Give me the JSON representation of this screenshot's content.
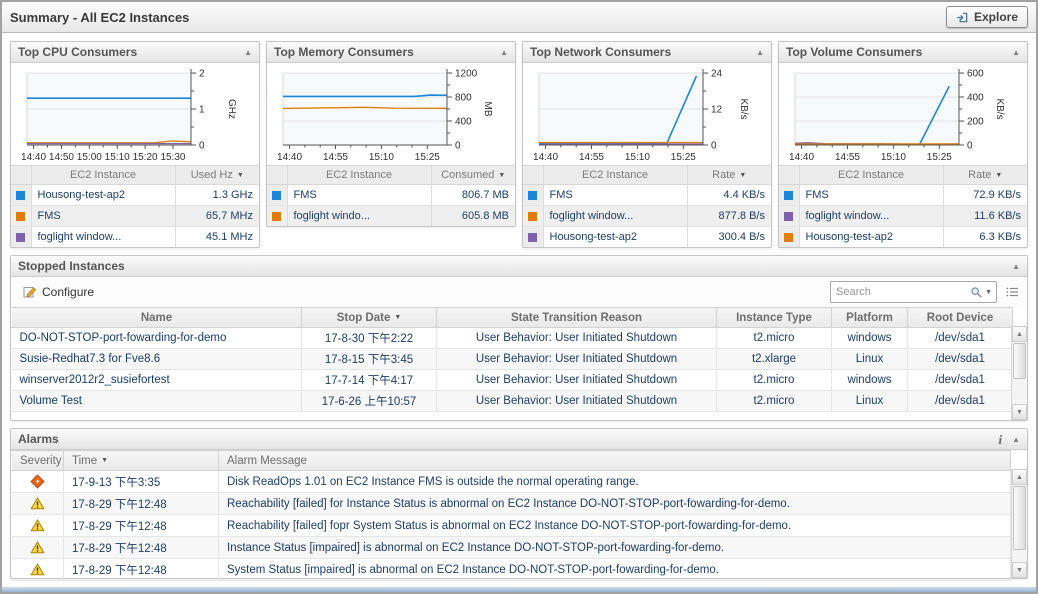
{
  "header": {
    "title": "Summary - All EC2 Instances",
    "explore_label": "Explore"
  },
  "panels": [
    {
      "title": "Top CPU Consumers",
      "name_header": "EC2 Instance",
      "value_header": "Used Hz",
      "rows": [
        {
          "color": "#1c87d9",
          "name": "Housong-test-ap2",
          "value": "1.3 GHz"
        },
        {
          "color": "#e07d0a",
          "name": "FMS",
          "value": "65.7 MHz"
        },
        {
          "color": "#7e62ab",
          "name": "foglight window...",
          "value": "45.1 MHz"
        }
      ]
    },
    {
      "title": "Top Memory Consumers",
      "name_header": "EC2 Instance",
      "value_header": "Consumed",
      "rows": [
        {
          "color": "#1c87d9",
          "name": "FMS",
          "value": "806.7 MB"
        },
        {
          "color": "#e07d0a",
          "name": "foglight windo...",
          "value": "605.8 MB"
        }
      ]
    },
    {
      "title": "Top Network Consumers",
      "name_header": "EC2 Instance",
      "value_header": "Rate",
      "rows": [
        {
          "color": "#1c87d9",
          "name": "FMS",
          "value": "4.4 KB/s"
        },
        {
          "color": "#e07d0a",
          "name": "foglight window...",
          "value": "877.8 B/s"
        },
        {
          "color": "#7e62ab",
          "name": "Housong-test-ap2",
          "value": "300.4 B/s"
        }
      ]
    },
    {
      "title": "Top Volume Consumers",
      "name_header": "EC2 Instance",
      "value_header": "Rate",
      "rows": [
        {
          "color": "#1c87d9",
          "name": "FMS",
          "value": "72.9 KB/s"
        },
        {
          "color": "#7e62ab",
          "name": "foglight window...",
          "value": "11.6 KB/s"
        },
        {
          "color": "#e07d0a",
          "name": "Housong-test-ap2",
          "value": "6.3 KB/s"
        }
      ]
    }
  ],
  "chart_data": [
    {
      "type": "line",
      "title": "Top CPU Consumers",
      "unit": "GHz",
      "ylim": [
        0,
        2
      ],
      "yticks": [
        0,
        1,
        2
      ],
      "xticks": [
        "14:40",
        "14:50",
        "15:00",
        "15:10",
        "15:20",
        "15:30"
      ],
      "xtick_pos": [
        0.04,
        0.21,
        0.38,
        0.55,
        0.72,
        0.89
      ],
      "x_minor": 1,
      "grid": true,
      "legend": "table-below",
      "series": [
        {
          "name": "Housong-test-ap2",
          "color": "#1c87d9",
          "width": 1.6,
          "points": [
            [
              0,
              1.3
            ],
            [
              1,
              1.3
            ]
          ]
        },
        {
          "name": "FMS",
          "color": "#e07d0a",
          "width": 1.3,
          "points": [
            [
              0,
              0.06
            ],
            [
              0.78,
              0.06
            ],
            [
              0.88,
              0.11
            ],
            [
              1,
              0.09
            ]
          ]
        },
        {
          "name": "foglight window...",
          "color": "#7e62ab",
          "width": 1.3,
          "points": [
            [
              0,
              0.04
            ],
            [
              1,
              0.04
            ]
          ]
        }
      ]
    },
    {
      "type": "line",
      "title": "Top Memory Consumers",
      "unit": "MB",
      "ylim": [
        0,
        1200
      ],
      "yticks": [
        0,
        400,
        800,
        1200
      ],
      "xticks": [
        "14:40",
        "14:55",
        "15:10",
        "15:25"
      ],
      "xtick_pos": [
        0.04,
        0.32,
        0.6,
        0.88
      ],
      "x_minor": 2,
      "grid": true,
      "legend": "table-below",
      "series": [
        {
          "name": "FMS",
          "color": "#1c87d9",
          "width": 1.6,
          "points": [
            [
              0,
              810
            ],
            [
              0.8,
              810
            ],
            [
              0.9,
              832
            ],
            [
              1,
              828
            ]
          ]
        },
        {
          "name": "foglight windo...",
          "color": "#e07d0a",
          "width": 1.4,
          "points": [
            [
              0,
              610
            ],
            [
              0.35,
              622
            ],
            [
              0.5,
              628
            ],
            [
              0.68,
              614
            ],
            [
              1,
              612
            ]
          ]
        }
      ]
    },
    {
      "type": "line",
      "title": "Top Network Consumers",
      "unit": "KB/s",
      "ylim": [
        0,
        24
      ],
      "yticks": [
        0,
        12,
        24
      ],
      "xticks": [
        "14:40",
        "14:55",
        "15:10",
        "15:25"
      ],
      "xtick_pos": [
        0.04,
        0.32,
        0.6,
        0.88
      ],
      "x_minor": 2,
      "grid": true,
      "legend": "table-below",
      "series": [
        {
          "name": "FMS",
          "color": "#1c87d9",
          "width": 1.6,
          "points": [
            [
              0,
              0.6
            ],
            [
              0.78,
              0.6
            ],
            [
              0.96,
              23
            ]
          ]
        },
        {
          "name": "foglight window...",
          "color": "#e07d0a",
          "width": 1.3,
          "points": [
            [
              0,
              0.85
            ],
            [
              1,
              0.85
            ]
          ]
        },
        {
          "name": "Housong-test-ap2",
          "color": "#7e62ab",
          "width": 1.3,
          "points": [
            [
              0,
              0.3
            ],
            [
              1,
              0.35
            ]
          ]
        }
      ]
    },
    {
      "type": "line",
      "title": "Top Volume Consumers",
      "unit": "KB/s",
      "ylim": [
        0,
        600
      ],
      "yticks": [
        0,
        200,
        400,
        600
      ],
      "xticks": [
        "14:40",
        "14:55",
        "15:10",
        "15:25"
      ],
      "xtick_pos": [
        0.04,
        0.32,
        0.6,
        0.88
      ],
      "x_minor": 2,
      "grid": true,
      "legend": "table-below",
      "series": [
        {
          "name": "FMS",
          "color": "#1c87d9",
          "width": 1.6,
          "points": [
            [
              0,
              5
            ],
            [
              0.76,
              5
            ],
            [
              0.94,
              490
            ]
          ]
        },
        {
          "name": "foglight window...",
          "color": "#7e62ab",
          "width": 1.3,
          "points": [
            [
              0,
              14
            ],
            [
              0.08,
              18
            ],
            [
              0.18,
              12
            ],
            [
              0.5,
              10
            ],
            [
              0.76,
              6
            ],
            [
              1,
              8
            ]
          ]
        },
        {
          "name": "Housong-test-ap2",
          "color": "#e07d0a",
          "width": 1.3,
          "points": [
            [
              0,
              8
            ],
            [
              1,
              9
            ]
          ]
        }
      ]
    }
  ],
  "stopped": {
    "title": "Stopped Instances",
    "configure_label": "Configure",
    "search_placeholder": "Search",
    "columns": [
      "Name",
      "Stop Date",
      "State Transition Reason",
      "Instance Type",
      "Platform",
      "Root Device"
    ],
    "rows": [
      {
        "name": "DO-NOT-STOP-port-fowarding-for-demo",
        "stop_date": "17-8-30 下午2:22",
        "reason": "User Behavior: User Initiated Shutdown",
        "type": "t2.micro",
        "platform": "windows",
        "root_device": "/dev/sda1"
      },
      {
        "name": "Susie-Redhat7.3 for Fve8.6",
        "stop_date": "17-8-15 下午3:45",
        "reason": "User Behavior: User Initiated Shutdown",
        "type": "t2.xlarge",
        "platform": "Linux",
        "root_device": "/dev/sda1"
      },
      {
        "name": "winserver2012r2_susiefortest",
        "stop_date": "17-7-14 下午4:17",
        "reason": "User Behavior: User Initiated Shutdown",
        "type": "t2.micro",
        "platform": "windows",
        "root_device": "/dev/sda1"
      },
      {
        "name": "Volume Test",
        "stop_date": "17-6-26 上午10:57",
        "reason": "User Behavior: User Initiated Shutdown",
        "type": "t2.micro",
        "platform": "Linux",
        "root_device": "/dev/sda1"
      }
    ]
  },
  "alarms": {
    "title": "Alarms",
    "columns": [
      "Severity",
      "Time",
      "Alarm Message"
    ],
    "severity_colors": {
      "critical": "#e8621a",
      "warning": "#ffd84a"
    },
    "rows": [
      {
        "severity": "critical",
        "time": "17-9-13 下午3:35",
        "message": "Disk ReadOps 1.01 on EC2 Instance FMS is outside the normal operating range."
      },
      {
        "severity": "warning",
        "time": "17-8-29 下午12:48",
        "message": "Reachability [failed] for Instance Status is abnormal on EC2 Instance DO-NOT-STOP-port-fowarding-for-demo."
      },
      {
        "severity": "warning",
        "time": "17-8-29 下午12:48",
        "message": "Reachability [failed] fopr System Status is abnormal on EC2 Instance DO-NOT-STOP-port-fowarding-for-demo."
      },
      {
        "severity": "warning",
        "time": "17-8-29 下午12:48",
        "message": "Instance Status [impaired] is abnormal on EC2 Instance DO-NOT-STOP-port-fowarding-for-demo."
      },
      {
        "severity": "warning",
        "time": "17-8-29 下午12:48",
        "message": "System Status [impaired] is abnormal on EC2 Instance DO-NOT-STOP-port-fowarding-for-demo."
      }
    ]
  }
}
